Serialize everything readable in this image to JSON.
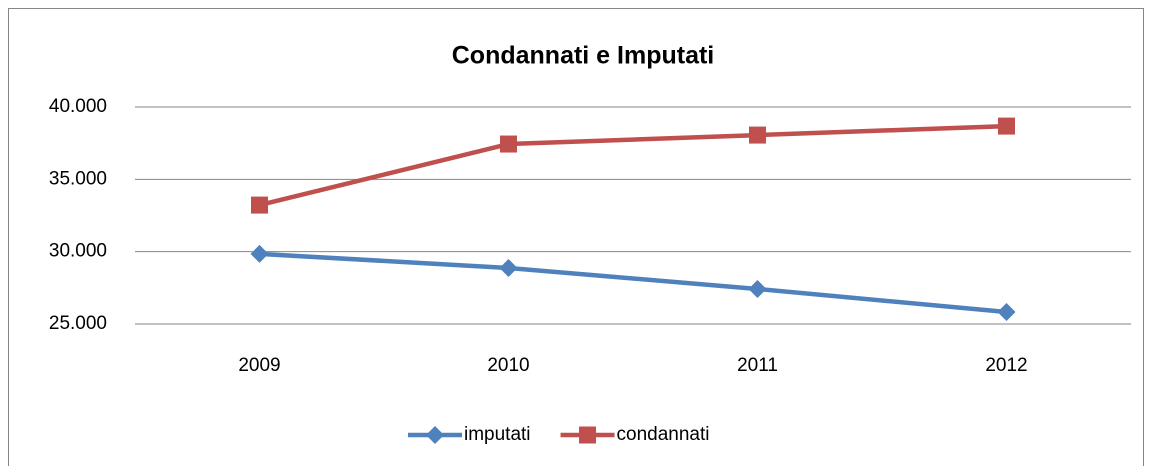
{
  "chart_data": {
    "type": "line",
    "title": "Condannati e Imputati",
    "categories": [
      "2009",
      "2010",
      "2011",
      "2012"
    ],
    "series": [
      {
        "name": "imputati",
        "color": "#4f81bd",
        "marker": "diamond",
        "values": [
          29850,
          28870,
          27420,
          25830
        ]
      },
      {
        "name": "condannati",
        "color": "#c0504d",
        "marker": "square",
        "values": [
          33220,
          37440,
          38060,
          38680
        ]
      }
    ],
    "ylim": [
      25000,
      40000
    ],
    "yticks": [
      {
        "value": 25000,
        "label": "25.000"
      },
      {
        "value": 30000,
        "label": "30.000"
      },
      {
        "value": 35000,
        "label": "35.000"
      },
      {
        "value": 40000,
        "label": "40.000"
      }
    ],
    "grid": true,
    "legend": "bottom"
  }
}
